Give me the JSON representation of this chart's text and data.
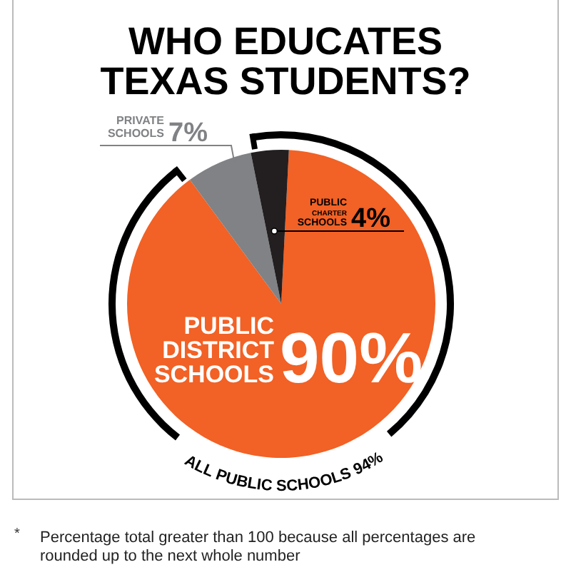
{
  "chart_data": {
    "type": "pie",
    "title": "WHO EDUCATES TEXAS STUDENTS?",
    "categories": [
      "PUBLIC DISTRICT SCHOOLS",
      "PRIVATE SCHOOLS",
      "PUBLIC CHARTER SCHOOLS"
    ],
    "values": [
      90,
      7,
      4
    ],
    "colors": [
      "#f26125",
      "#808285",
      "#231f20"
    ],
    "value_labels": [
      "90%",
      "7%",
      "4%"
    ],
    "annotations": [
      "ALL PUBLIC SCHOOLS 94%",
      "* Percentage total greater than 100 because all percentages are rounded up to the next whole number"
    ]
  }
}
